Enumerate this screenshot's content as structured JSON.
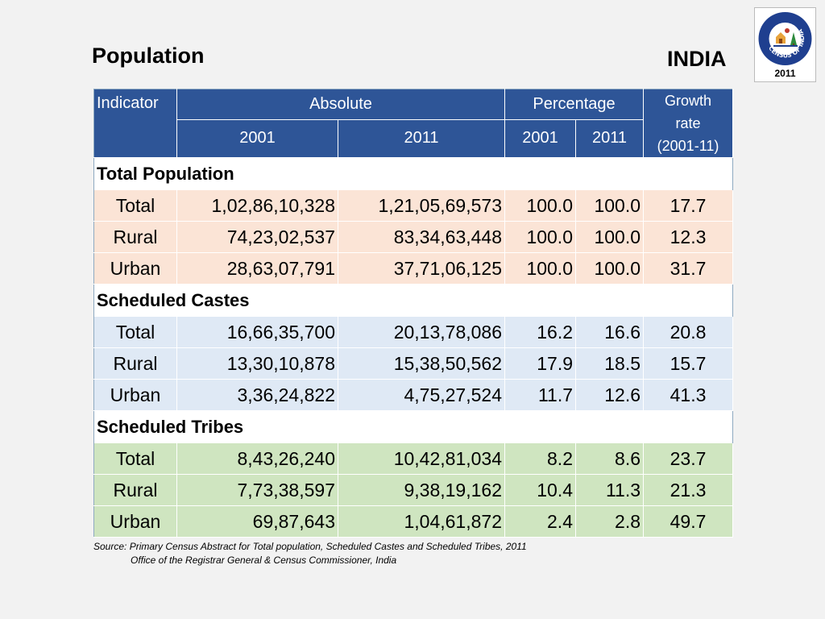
{
  "slide": {
    "title": "Population",
    "country": "INDIA",
    "logo": {
      "year": "2011",
      "ring_text": "CENSUS OF INDIA",
      "icon": "census-of-india-logo"
    }
  },
  "table": {
    "header": {
      "indicator": "Indicator",
      "absolute": "Absolute",
      "percentage": "Percentage",
      "growth": [
        "Growth",
        "rate",
        "(2001-11)"
      ],
      "abs_2001": "2001",
      "abs_2011": "2011",
      "pct_2001": "2001",
      "pct_2011": "2011"
    },
    "sections": [
      {
        "name": "Total Population",
        "rows": [
          [
            "Total",
            "1,02,86,10,328",
            "1,21,05,69,573",
            "100.0",
            "100.0",
            "17.7"
          ],
          [
            "Rural",
            "74,23,02,537",
            "83,34,63,448",
            "100.0",
            "100.0",
            "12.3"
          ],
          [
            "Urban",
            "28,63,07,791",
            "37,71,06,125",
            "100.0",
            "100.0",
            "31.7"
          ]
        ]
      },
      {
        "name": "Scheduled Castes",
        "rows": [
          [
            "Total",
            "16,66,35,700",
            "20,13,78,086",
            "16.2",
            "16.6",
            "20.8"
          ],
          [
            "Rural",
            "13,30,10,878",
            "15,38,50,562",
            "17.9",
            "18.5",
            "15.7"
          ],
          [
            "Urban",
            "3,36,24,822",
            "4,75,27,524",
            "11.7",
            "12.6",
            "41.3"
          ]
        ]
      },
      {
        "name": "Scheduled Tribes",
        "rows": [
          [
            "Total",
            "8,43,26,240",
            "10,42,81,034",
            "8.2",
            "8.6",
            "23.7"
          ],
          [
            "Rural",
            "7,73,38,597",
            "9,38,19,162",
            "10.4",
            "11.3",
            "21.3"
          ],
          [
            "Urban",
            "69,87,643",
            "1,04,61,872",
            "2.4",
            "2.8",
            "49.7"
          ]
        ]
      }
    ]
  },
  "source": {
    "line1": "Source: Primary Census Abstract for Total population, Scheduled Castes and Scheduled Tribes, 2011",
    "line2": "Office of the Registrar General & Census Commissioner, India"
  },
  "colors": {
    "header_bg": "#2e5597",
    "total_population_bg": "#fbe4d6",
    "scheduled_castes_bg": "#dfe9f5",
    "scheduled_tribes_bg": "#cfe5c0"
  }
}
